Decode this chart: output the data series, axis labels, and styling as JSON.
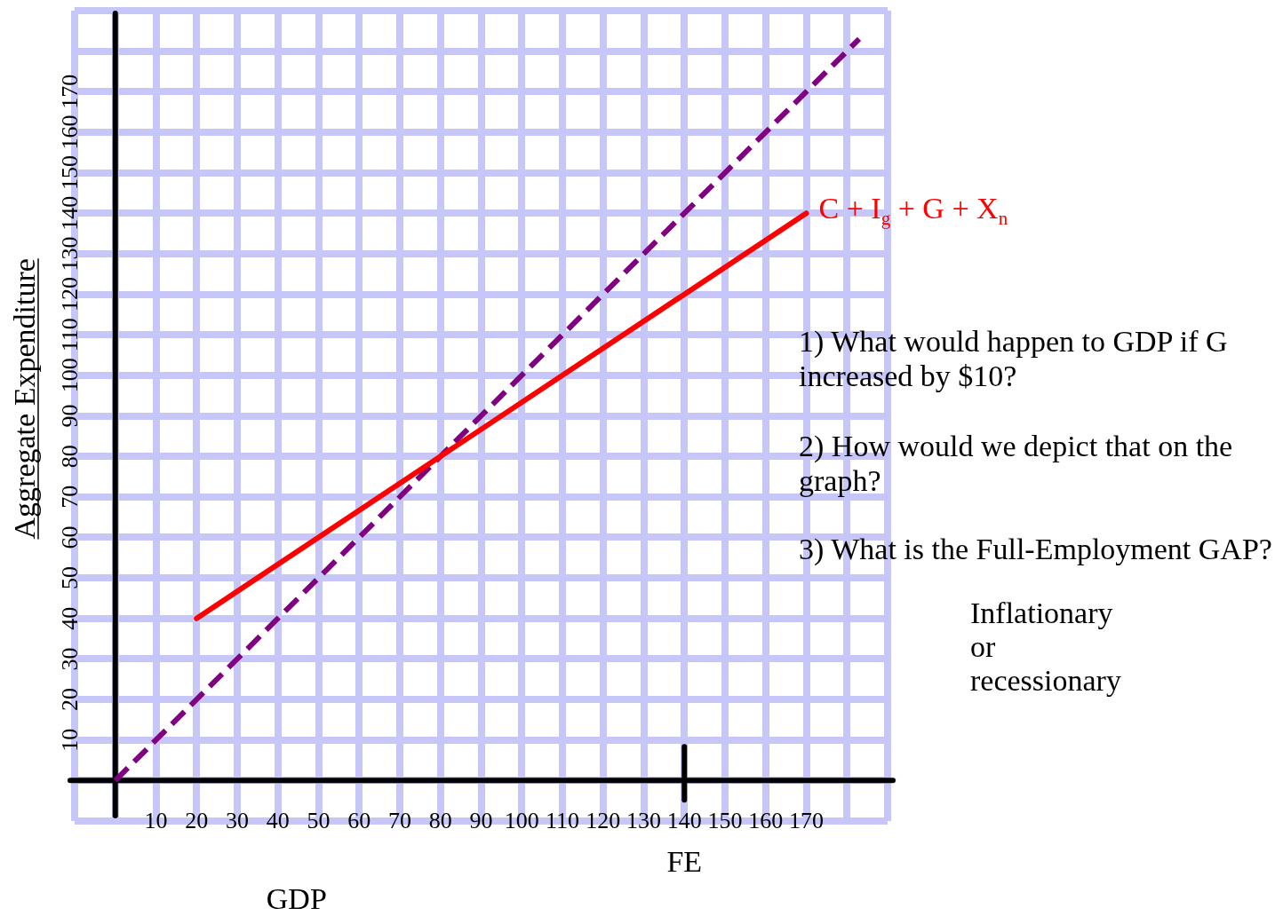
{
  "chart_data": {
    "type": "line",
    "xlabel": "GDP",
    "ylabel": "Aggregate Expenditure",
    "xlim": [
      -10,
      190
    ],
    "ylim": [
      -10,
      190
    ],
    "xticks": [
      {
        "value": -10,
        "label": null
      },
      {
        "value": 0,
        "label": null
      },
      10,
      20,
      30,
      40,
      50,
      60,
      70,
      80,
      90,
      100,
      110,
      120,
      130,
      140,
      150,
      160,
      170,
      {
        "value": 180,
        "label": null
      },
      {
        "value": 190,
        "label": null
      }
    ],
    "yticks": [
      {
        "value": -10,
        "label": null
      },
      {
        "value": 0,
        "label": null
      },
      10,
      20,
      30,
      40,
      50,
      60,
      70,
      80,
      90,
      100,
      110,
      120,
      130,
      140,
      150,
      160,
      170,
      {
        "value": 180,
        "label": null
      },
      {
        "value": 190,
        "label": null
      }
    ],
    "grid": true,
    "legend": false,
    "marker": "none",
    "series": [
      {
        "name": "C + I$_{g}$ + G + X$_{n}$",
        "color": "#ff0000",
        "x": [
          20,
          170
        ],
        "values": [
          40,
          140
        ],
        "line_style": "solid"
      },
      {
        "color": "#800080",
        "x": [
          0,
          183
        ],
        "values": [
          0,
          183
        ],
        "line_style": "dashed"
      }
    ],
    "ref_lines": [
      {
        "axis": "x",
        "value": 140,
        "label": "FE",
        "color": "#000000"
      }
    ],
    "annotations": [
      "1) What would happen to GDP if G increased by $10?",
      "2) How would we depict that on the graph?",
      "3) What is the Full-Employment GAP?",
      "Inflationary or recessionary"
    ]
  }
}
